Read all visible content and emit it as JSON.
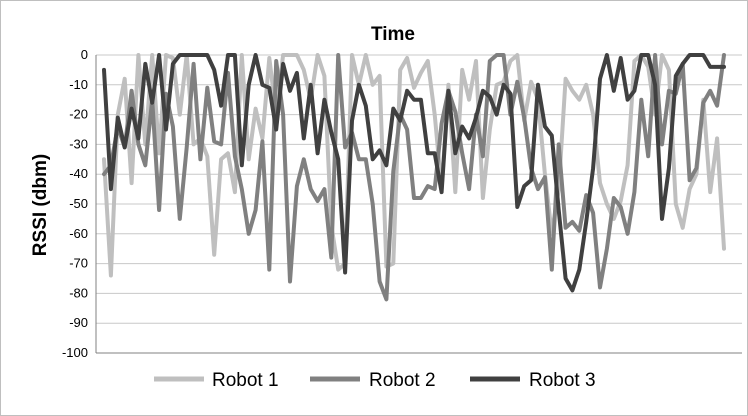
{
  "chart_data": {
    "type": "line",
    "title": "Time",
    "xlabel": "",
    "ylabel": "RSSI (dbm)",
    "ylim": [
      -100,
      0
    ],
    "yticks": [
      "0",
      "-10",
      "-20",
      "-30",
      "-40",
      "-50",
      "-60",
      "-70",
      "-80",
      "-90",
      "-100"
    ],
    "grid": true,
    "legend_position": "bottom",
    "colors": {
      "Robot 1": "#bfbfbf",
      "Robot 2": "#808080",
      "Robot 3": "#404040",
      "grid": "#c8c8c8",
      "axis": "#808080"
    },
    "series": [
      {
        "name": "Robot 1",
        "values": [
          -35,
          -74,
          -20,
          -8,
          -43,
          0,
          -30,
          0,
          -33,
          0,
          -1,
          -20,
          0,
          -30,
          -28,
          -34,
          -67,
          -35,
          -33,
          -46,
          0,
          -35,
          -18,
          -28,
          -1,
          -20,
          0,
          0,
          0,
          -5,
          -15,
          0,
          -7,
          -57,
          -72,
          -70,
          0,
          -10,
          0,
          -10,
          -7,
          -71,
          -70,
          -5,
          -1,
          -11,
          -6,
          -2,
          -20,
          -45,
          -10,
          -46,
          -5,
          -15,
          -2,
          -48,
          -25,
          -10,
          -9,
          -2,
          0,
          -22,
          -9,
          -15,
          -40,
          -60,
          -45,
          -8,
          -12,
          -15,
          -10,
          -20,
          -43,
          -50,
          -55,
          -49,
          -37,
          -2,
          0,
          -4,
          -20,
          0,
          -5,
          -50,
          -58,
          -45,
          -40,
          -15,
          -46,
          -28,
          -65
        ]
      },
      {
        "name": "Robot 2",
        "values": [
          -40,
          -37,
          -24,
          -31,
          -12,
          -30,
          -37,
          -15,
          -52,
          -13,
          -24,
          -55,
          -31,
          -3,
          -35,
          -11,
          -29,
          -30,
          -6,
          -34,
          -45,
          -60,
          -52,
          -29,
          -72,
          -2,
          -20,
          -76,
          -44,
          -35,
          -45,
          -49,
          -45,
          -68,
          0,
          -31,
          -26,
          -35,
          -35,
          -50,
          -76,
          -82,
          -39,
          -20,
          -25,
          -48,
          -48,
          -44,
          -45,
          -23,
          -12,
          -19,
          -33,
          -45,
          -20,
          -34,
          -2,
          0,
          0,
          -20,
          -9,
          -21,
          -38,
          -45,
          -41,
          -72,
          -30,
          -58,
          -56,
          -59,
          -47,
          -53,
          -78,
          -65,
          -48,
          -51,
          -60,
          -46,
          -15,
          -34,
          0,
          -30,
          -12,
          -13,
          -3,
          -42,
          -38,
          -16,
          -12,
          -17,
          0
        ]
      },
      {
        "name": "Robot 3",
        "values": [
          -5,
          -45,
          -21,
          -31,
          -18,
          -28,
          -3,
          -16,
          0,
          -25,
          -3,
          0,
          0,
          0,
          0,
          0,
          -5,
          -17,
          0,
          0,
          -37,
          -10,
          0,
          -10,
          -11,
          -25,
          -3,
          -12,
          -6,
          -28,
          -10,
          -33,
          -15,
          -26,
          -35,
          -73,
          -22,
          -10,
          -17,
          -35,
          -32,
          -37,
          -18,
          -22,
          -12,
          -15,
          -15,
          -33,
          -33,
          -46,
          -12,
          -33,
          -24,
          -28,
          -21,
          -12,
          -14,
          -20,
          -10,
          -13,
          -51,
          -44,
          -42,
          -10,
          -24,
          -27,
          -52,
          -75,
          -79,
          -72,
          -56,
          -38,
          -8,
          0,
          -12,
          -1,
          -15,
          -12,
          0,
          0,
          -10,
          -55,
          -38,
          -7,
          -3,
          0,
          0,
          0,
          -4,
          -4,
          -4
        ]
      }
    ]
  }
}
